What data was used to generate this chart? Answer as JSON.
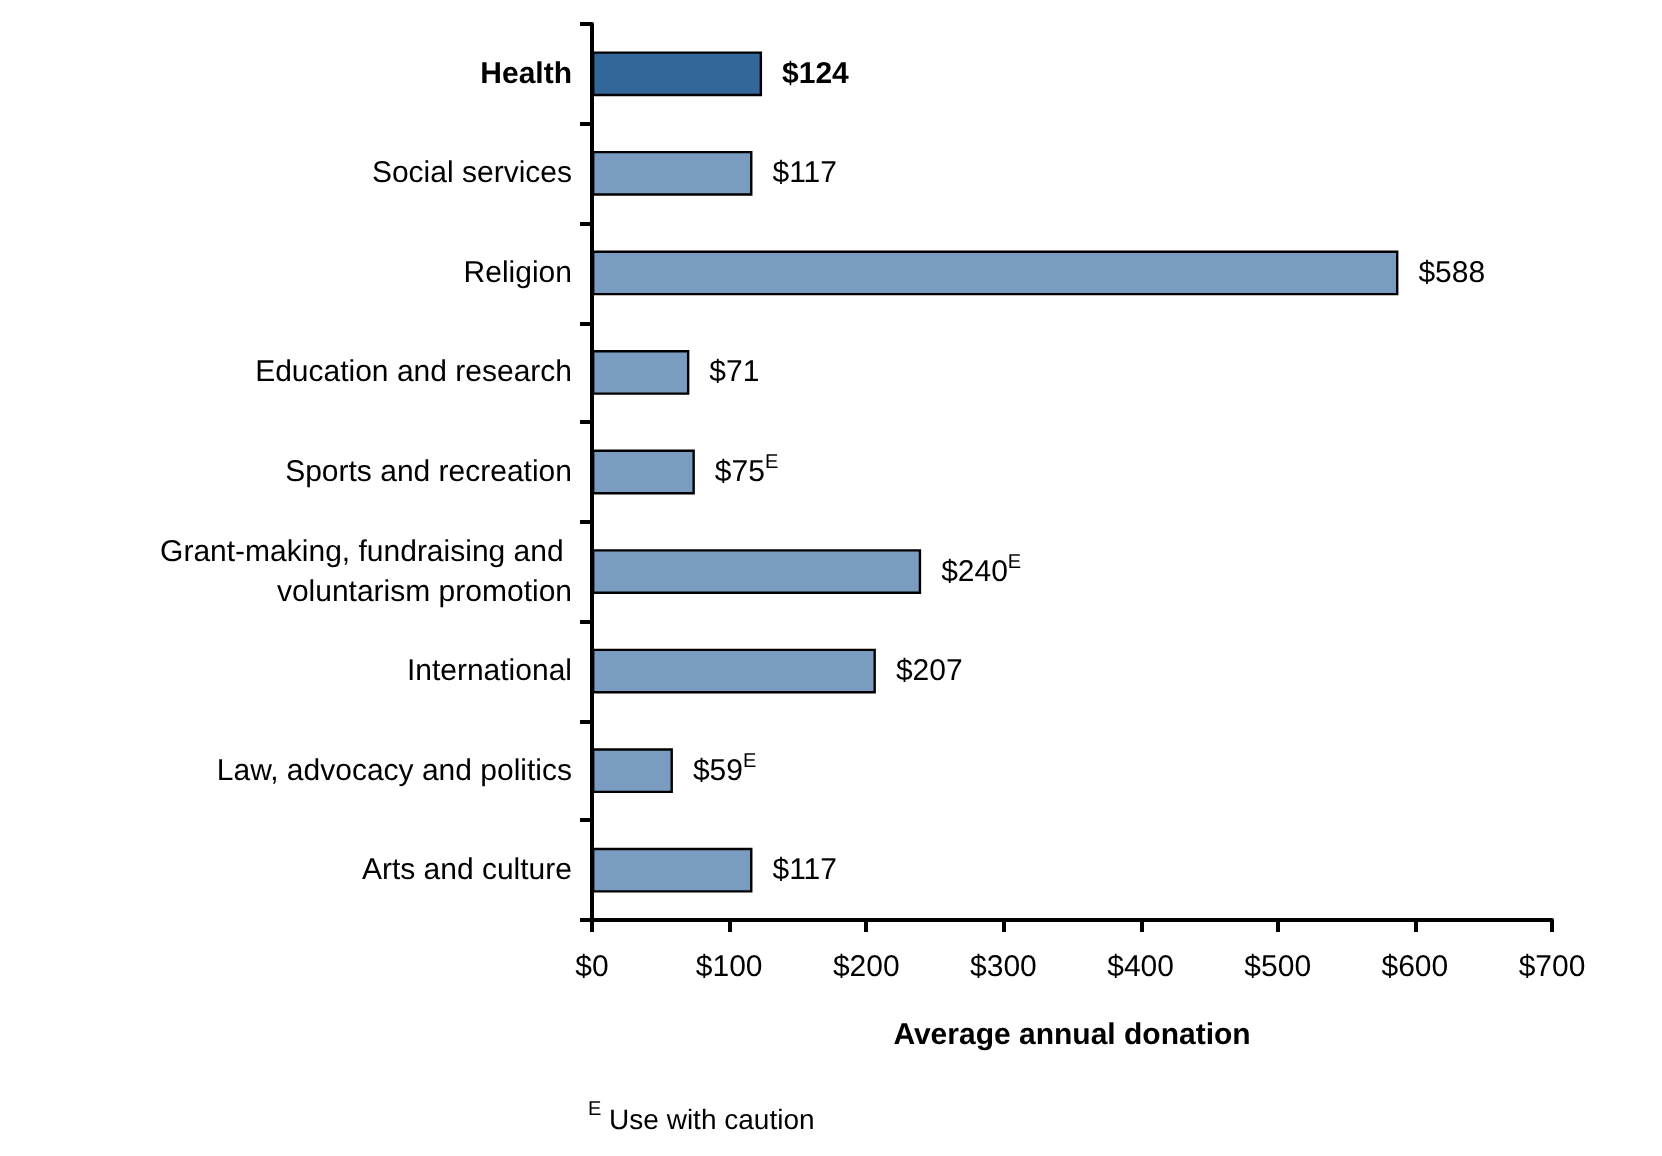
{
  "chart_data": {
    "type": "bar",
    "orientation": "horizontal",
    "categories": [
      "Health",
      "Social services",
      "Religion",
      "Education and research",
      "Sports and recreation",
      "Grant-making, fundraising and voluntarism promotion",
      "International",
      "Law, advocacy and politics",
      "Arts and culture"
    ],
    "values": [
      124,
      117,
      588,
      71,
      75,
      240,
      207,
      59,
      117
    ],
    "colors": [
      "#336699",
      "#7b9cc1",
      "#7b9cc1",
      "#7b9cc1",
      "#7b9cc1",
      "#7b9cc1",
      "#7b9cc1",
      "#7b9cc1",
      "#7b9cc1"
    ],
    "value_labels": [
      "$124",
      "$117",
      "$588",
      "$71",
      "$75$^{E}$",
      "$240$^{E}$",
      "$207",
      "$59$^{E}$",
      "$117"
    ],
    "xlim": [
      0,
      700
    ],
    "xticks": [
      {
        "value": 0,
        "label": "$0"
      },
      {
        "value": 100,
        "label": "$100"
      },
      {
        "value": 200,
        "label": "$200"
      },
      {
        "value": 300,
        "label": "$300"
      },
      {
        "value": 400,
        "label": "$400"
      },
      {
        "value": 500,
        "label": "$500"
      },
      {
        "value": 600,
        "label": "$600"
      },
      {
        "value": 700,
        "label": "$700"
      }
    ],
    "xlabel": "Average annual donation",
    "annotations": [
      "$^{E}$ Use with caution"
    ]
  }
}
